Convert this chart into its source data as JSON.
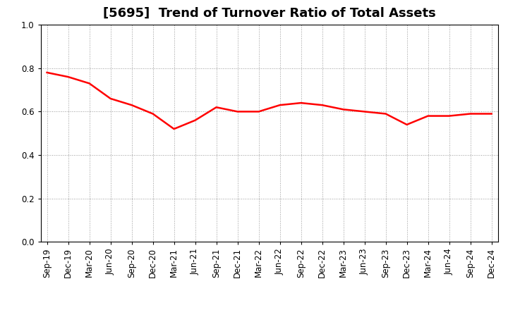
{
  "title": "[5695]  Trend of Turnover Ratio of Total Assets",
  "x_labels": [
    "Sep-19",
    "Dec-19",
    "Mar-20",
    "Jun-20",
    "Sep-20",
    "Dec-20",
    "Mar-21",
    "Jun-21",
    "Sep-21",
    "Dec-21",
    "Mar-22",
    "Jun-22",
    "Sep-22",
    "Dec-22",
    "Mar-23",
    "Jun-23",
    "Sep-23",
    "Dec-23",
    "Mar-24",
    "Jun-24",
    "Sep-24",
    "Dec-24"
  ],
  "y_values": [
    0.78,
    0.76,
    0.73,
    0.66,
    0.63,
    0.59,
    0.52,
    0.56,
    0.62,
    0.6,
    0.6,
    0.63,
    0.64,
    0.63,
    0.61,
    0.6,
    0.59,
    0.54,
    0.58,
    0.58,
    0.59,
    0.59
  ],
  "line_color": "#FF0000",
  "line_width": 1.8,
  "ylim": [
    0.0,
    1.0
  ],
  "yticks": [
    0.0,
    0.2,
    0.4,
    0.6,
    0.8,
    1.0
  ],
  "grid_color": "#999999",
  "grid_linestyle": ":",
  "background_color": "#ffffff",
  "title_fontsize": 13,
  "tick_fontsize": 8.5
}
